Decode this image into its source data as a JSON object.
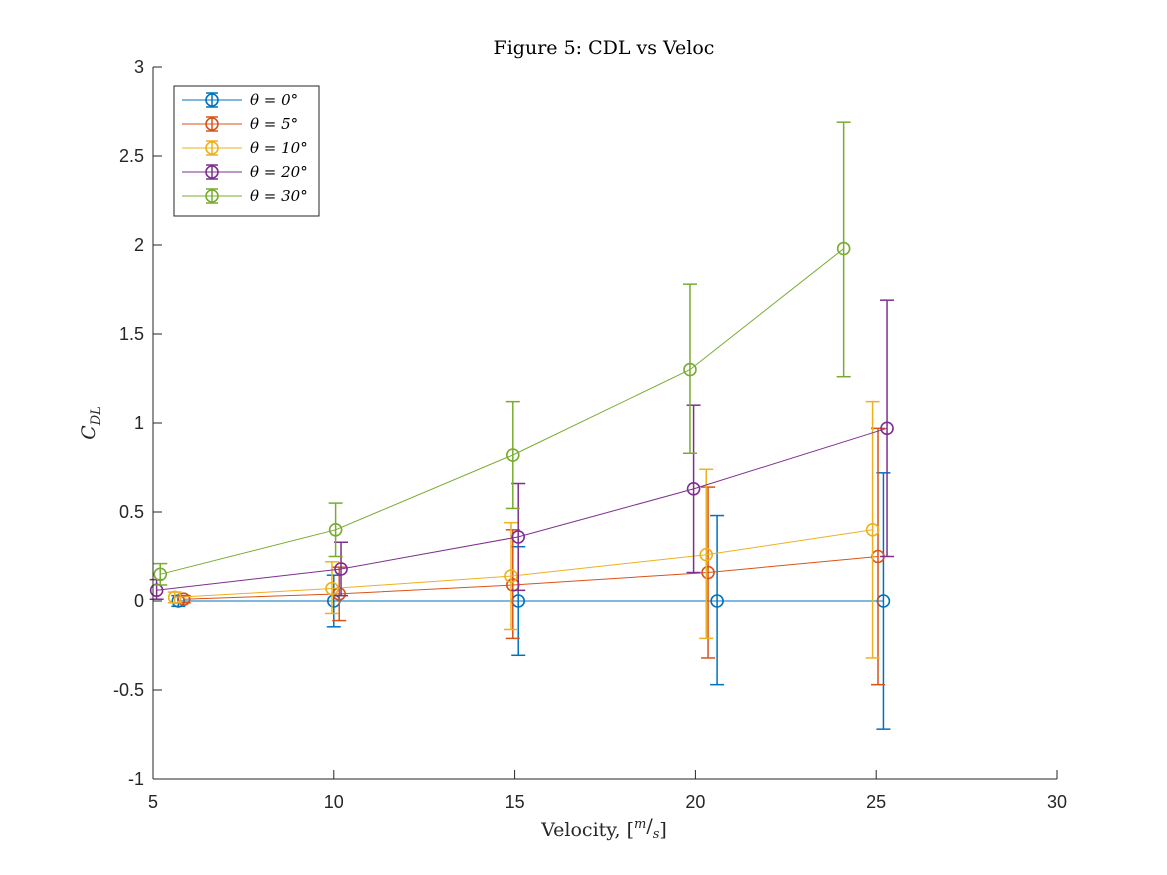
{
  "chart_data": {
    "type": "line",
    "title": "Figure 5: CDL vs Veloc",
    "xlabel": "Velocity, [m/s]",
    "ylabel": "C_DL",
    "ylabel_main": "C",
    "ylabel_sub": "DL",
    "xlabel_main": "Velocity, [",
    "xlabel_num": "m",
    "xlabel_slash": "/",
    "xlabel_den": "s",
    "xlabel_close": "]",
    "xlim": [
      5,
      30
    ],
    "ylim": [
      -1,
      3
    ],
    "xticks": [
      5,
      10,
      15,
      20,
      25,
      30
    ],
    "yticks": [
      -1,
      -0.5,
      0,
      0.5,
      1,
      1.5,
      2,
      2.5,
      3
    ],
    "xtick_labels": [
      "5",
      "10",
      "15",
      "20",
      "25",
      "30"
    ],
    "ytick_labels": [
      "-1",
      "-0.5",
      "0",
      "0.5",
      "1",
      "1.5",
      "2",
      "2.5",
      "3"
    ],
    "grid": false,
    "legend_position": "top-left",
    "markers": "circle",
    "error_bars": true,
    "series": [
      {
        "name": "θ = 0°",
        "color": "#0072BD",
        "x": [
          5.7,
          10.0,
          15.1,
          20.6,
          25.2
        ],
        "y": [
          0.0,
          0.0,
          0.0,
          0.0,
          0.0
        ],
        "yerr_low": [
          -0.03,
          -0.145,
          -0.305,
          -0.47,
          -0.72
        ],
        "yerr_high": [
          0.03,
          0.145,
          0.305,
          0.48,
          0.72
        ]
      },
      {
        "name": "θ = 5°",
        "color": "#D95319",
        "x": [
          5.85,
          10.15,
          14.95,
          20.35,
          25.05
        ],
        "y": [
          0.01,
          0.04,
          0.09,
          0.16,
          0.25
        ],
        "yerr_low": [
          -0.01,
          -0.11,
          -0.21,
          -0.32,
          -0.47
        ],
        "yerr_high": [
          0.03,
          0.19,
          0.4,
          0.64,
          0.97
        ]
      },
      {
        "name": "θ = 10°",
        "color": "#EDB120",
        "x": [
          5.6,
          9.95,
          14.9,
          20.3,
          24.9
        ],
        "y": [
          0.02,
          0.07,
          0.14,
          0.26,
          0.4
        ],
        "yerr_low": [
          -0.01,
          -0.07,
          -0.16,
          -0.21,
          -0.32
        ],
        "yerr_high": [
          0.05,
          0.22,
          0.44,
          0.74,
          1.12
        ]
      },
      {
        "name": "θ = 20°",
        "color": "#7E2F8E",
        "x": [
          5.1,
          10.2,
          15.1,
          19.95,
          25.3
        ],
        "y": [
          0.06,
          0.18,
          0.36,
          0.63,
          0.97
        ],
        "yerr_low": [
          0.01,
          0.03,
          0.06,
          0.16,
          0.25
        ],
        "yerr_high": [
          0.12,
          0.33,
          0.66,
          1.1,
          1.69
        ]
      },
      {
        "name": "θ = 30°",
        "color": "#77AC30",
        "x": [
          5.2,
          10.05,
          14.95,
          19.85,
          24.1
        ],
        "y": [
          0.15,
          0.4,
          0.82,
          1.3,
          1.98
        ],
        "yerr_low": [
          0.09,
          0.25,
          0.52,
          0.83,
          1.26
        ],
        "yerr_high": [
          0.21,
          0.55,
          1.12,
          1.78,
          2.69
        ]
      }
    ]
  }
}
